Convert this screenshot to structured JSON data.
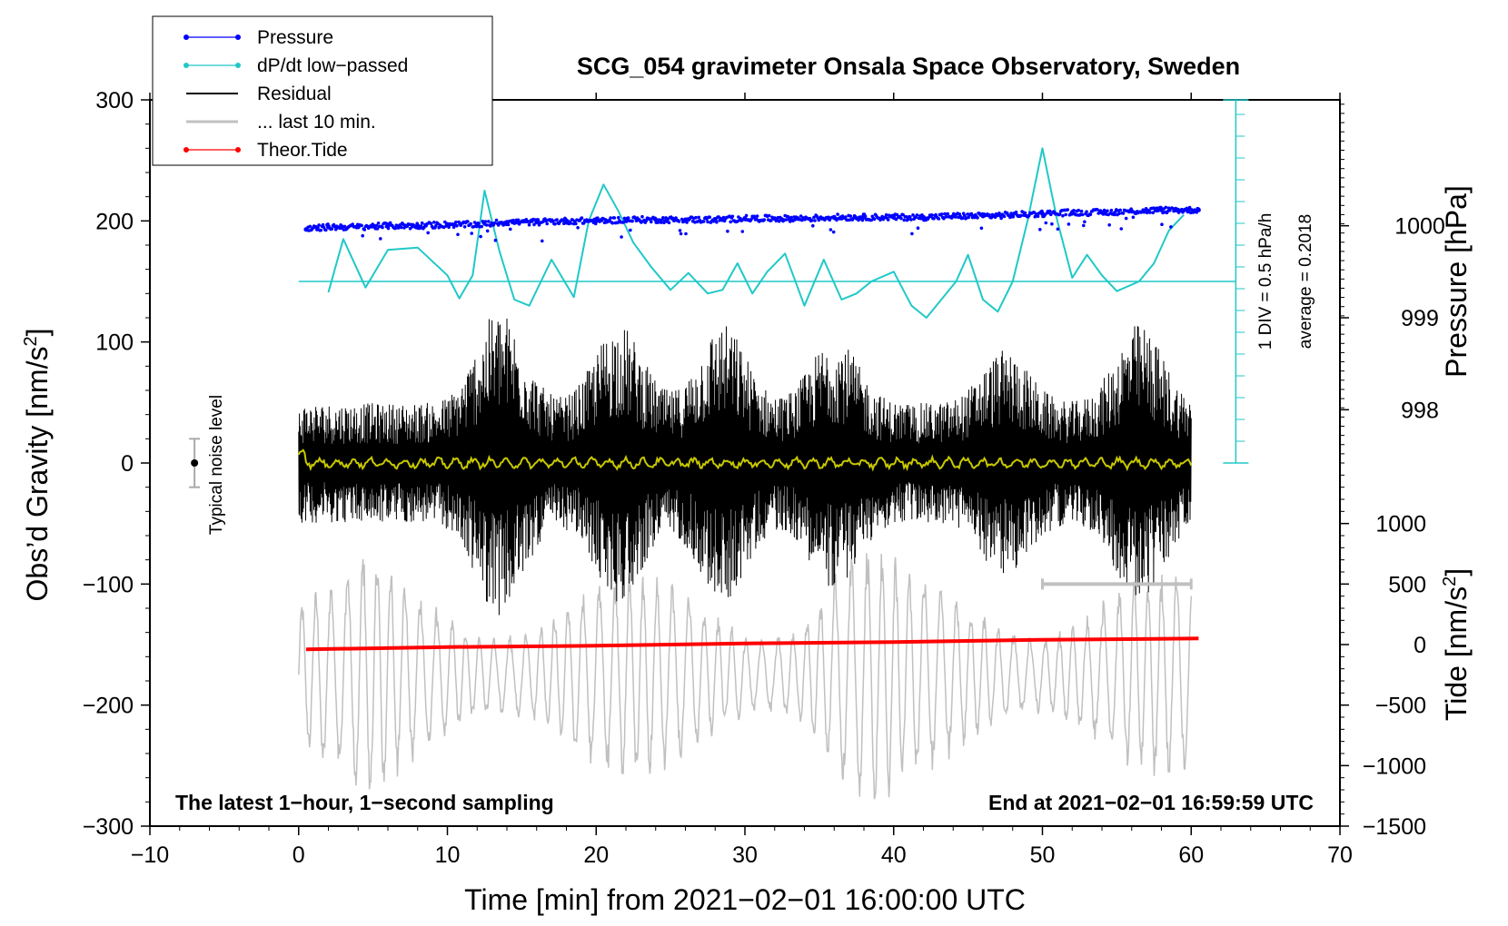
{
  "chart_data": {
    "type": "line",
    "title": "SCG_054 gravimeter Onsala Space Observatory, Sweden",
    "xlabel": "Time [min] from 2021−02−01 16:00:00 UTC",
    "ylabel": "Obs’d Gravity [nm/s",
    "ylabel_sup": "2",
    "ylabel_close": "]",
    "right_label_pressure": "Pressure [hPa]",
    "right_label_tide": "Tide [nm/s",
    "right_label_tide_sup": "2",
    "right_label_tide_close": "]",
    "xlim": [
      -10,
      70
    ],
    "ylim": [
      -300,
      300
    ],
    "x_ticks": [
      -10,
      0,
      10,
      20,
      30,
      40,
      50,
      60,
      70
    ],
    "x_tick_labels": [
      "−10",
      "0",
      "10",
      "20",
      "30",
      "40",
      "50",
      "60",
      "70"
    ],
    "y_ticks": [
      -300,
      -200,
      -100,
      0,
      100,
      200,
      300
    ],
    "y_tick_labels": [
      "−300",
      "−200",
      "−100",
      "0",
      "100",
      "200",
      "300"
    ],
    "pressure_ticks": [
      {
        "value": 1000,
        "label": "1000",
        "y": 196
      },
      {
        "value": 999,
        "label": "999",
        "y": 120
      },
      {
        "value": 998,
        "label": "998",
        "y": 44
      }
    ],
    "tide_ticks": [
      {
        "value": 1000,
        "label": "1000",
        "y": 250
      },
      {
        "value": 500,
        "label": "500",
        "y": 200
      },
      {
        "value": 0,
        "label": "0",
        "y": 150
      },
      {
        "value": -500,
        "label": "−500",
        "y": 100
      },
      {
        "value": -1000,
        "label": "−1000",
        "y": 50
      },
      {
        "value": -1500,
        "label": "−1500",
        "y": 0
      }
    ],
    "legend": [
      {
        "label": "Pressure",
        "color": "#0000ff",
        "marker": true
      },
      {
        "label": "dP/dt low−passed",
        "color": "#20c8c8",
        "marker": true
      },
      {
        "label": "Residual",
        "color": "#000000",
        "marker": false
      },
      {
        "label": "... last 10 min.",
        "color": "#c0c0c0",
        "marker": false
      },
      {
        "label": "Theor.Tide",
        "color": "#ff0000",
        "marker": true
      }
    ],
    "annotations": {
      "bottom_left": "The latest 1−hour, 1−second sampling",
      "bottom_right": "End at 2021−02−01 16:59:59 UTC",
      "noise_label": "Typical noise level",
      "div_label": "1 DIV = 0.5 hPa/h",
      "average_label": "average = 0.2018"
    },
    "noise_level": {
      "x": -7,
      "center": 0,
      "range": [
        -20,
        20
      ]
    },
    "last10_bracket": {
      "x_start": 50,
      "x_end": 60,
      "y": -100
    },
    "series": [
      {
        "name": "Pressure",
        "color": "#0000ff",
        "style": "dots",
        "points": [
          [
            0.5,
            193
          ],
          [
            2,
            195
          ],
          [
            4,
            195
          ],
          [
            6,
            196
          ],
          [
            8,
            196
          ],
          [
            10,
            197
          ],
          [
            12,
            197
          ],
          [
            14,
            199
          ],
          [
            16,
            199
          ],
          [
            18,
            200
          ],
          [
            20,
            200
          ],
          [
            22,
            201
          ],
          [
            24,
            201
          ],
          [
            26,
            201
          ],
          [
            28,
            201
          ],
          [
            30,
            202
          ],
          [
            32,
            202
          ],
          [
            34,
            202
          ],
          [
            36,
            203
          ],
          [
            38,
            203
          ],
          [
            40,
            203
          ],
          [
            42,
            203
          ],
          [
            44,
            204
          ],
          [
            46,
            204
          ],
          [
            48,
            205
          ],
          [
            50,
            206
          ],
          [
            52,
            207
          ],
          [
            54,
            207
          ],
          [
            56,
            208
          ],
          [
            58,
            209
          ],
          [
            60.5,
            209
          ]
        ]
      },
      {
        "name": "dP/dt low-passed",
        "color": "#20c8c8",
        "style": "line",
        "baseline": 150,
        "points": [
          [
            2,
            141
          ],
          [
            3,
            185
          ],
          [
            4.5,
            145
          ],
          [
            6,
            176
          ],
          [
            8,
            178
          ],
          [
            10,
            155
          ],
          [
            10.8,
            136
          ],
          [
            11.7,
            155
          ],
          [
            12.5,
            225
          ],
          [
            13.5,
            175
          ],
          [
            14.5,
            135
          ],
          [
            15.5,
            130
          ],
          [
            17,
            168
          ],
          [
            18.5,
            137
          ],
          [
            19.5,
            200
          ],
          [
            20.5,
            230
          ],
          [
            21.5,
            208
          ],
          [
            22.5,
            182
          ],
          [
            23.7,
            162
          ],
          [
            25,
            143
          ],
          [
            26.2,
            157
          ],
          [
            27.5,
            140
          ],
          [
            28.5,
            143
          ],
          [
            29.5,
            165
          ],
          [
            30.5,
            140
          ],
          [
            31.5,
            158
          ],
          [
            32.7,
            173
          ],
          [
            34,
            130
          ],
          [
            35.3,
            168
          ],
          [
            36.5,
            135
          ],
          [
            37.5,
            140
          ],
          [
            38.5,
            150
          ],
          [
            40,
            158
          ],
          [
            41.2,
            130
          ],
          [
            42.2,
            120
          ],
          [
            43.2,
            135
          ],
          [
            44.2,
            150
          ],
          [
            45,
            172
          ],
          [
            46,
            135
          ],
          [
            47,
            125
          ],
          [
            48,
            150
          ],
          [
            49,
            200
          ],
          [
            50,
            260
          ],
          [
            51,
            200
          ],
          [
            52,
            153
          ],
          [
            53,
            172
          ],
          [
            54,
            155
          ],
          [
            55,
            142
          ],
          [
            56.5,
            150
          ],
          [
            57.5,
            165
          ],
          [
            58.5,
            192
          ],
          [
            59.5,
            205
          ]
        ]
      },
      {
        "name": "Theor.Tide",
        "color": "#ff0000",
        "style": "thick-line",
        "points": [
          [
            0.5,
            -154
          ],
          [
            10,
            -152
          ],
          [
            20,
            -151
          ],
          [
            30,
            -149
          ],
          [
            40,
            -148
          ],
          [
            50,
            -146
          ],
          [
            60.5,
            -145
          ]
        ]
      }
    ]
  }
}
